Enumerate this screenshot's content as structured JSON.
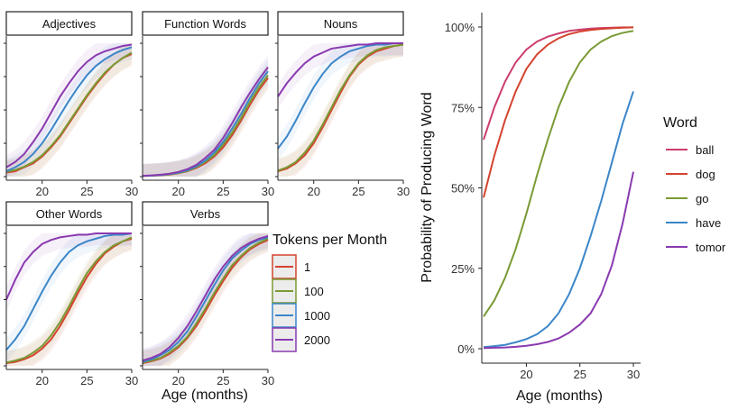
{
  "chart_data": [
    {
      "type": "line",
      "layout": "facets",
      "xlabel": "Age (months)",
      "ylabel": "",
      "xlim": [
        16,
        30
      ],
      "ylim": [
        0,
        1
      ],
      "xticks": [
        20,
        25,
        30
      ],
      "legend": {
        "title": "Tokens per Month",
        "placement": "right",
        "entries": [
          {
            "label": "1",
            "color": "#d4432f"
          },
          {
            "label": "100",
            "color": "#7a9a34"
          },
          {
            "label": "1000",
            "color": "#3b86c8"
          },
          {
            "label": "2000",
            "color": "#8a3ab0"
          }
        ]
      },
      "x": [
        16,
        17,
        18,
        19,
        20,
        21,
        22,
        23,
        24,
        25,
        26,
        27,
        28,
        29,
        30
      ],
      "facets": [
        {
          "title": "Adjectives",
          "show_xticks": true,
          "series": [
            {
              "name": "1",
              "values": [
                0.03,
                0.04,
                0.07,
                0.1,
                0.15,
                0.22,
                0.3,
                0.4,
                0.5,
                0.6,
                0.69,
                0.77,
                0.84,
                0.89,
                0.92
              ]
            },
            {
              "name": "100",
              "values": [
                0.035,
                0.05,
                0.075,
                0.11,
                0.16,
                0.23,
                0.31,
                0.41,
                0.51,
                0.61,
                0.7,
                0.78,
                0.84,
                0.89,
                0.93
              ]
            },
            {
              "name": "1000",
              "values": [
                0.04,
                0.07,
                0.11,
                0.17,
                0.25,
                0.35,
                0.46,
                0.57,
                0.67,
                0.76,
                0.83,
                0.88,
                0.92,
                0.95,
                0.97
              ]
            },
            {
              "name": "2000",
              "values": [
                0.07,
                0.11,
                0.17,
                0.26,
                0.36,
                0.48,
                0.6,
                0.7,
                0.79,
                0.86,
                0.91,
                0.94,
                0.96,
                0.98,
                0.99
              ]
            }
          ]
        },
        {
          "title": "Function Words",
          "show_xticks": true,
          "series": [
            {
              "name": "1",
              "values": [
                0.005,
                0.007,
                0.01,
                0.015,
                0.025,
                0.04,
                0.065,
                0.1,
                0.15,
                0.22,
                0.31,
                0.42,
                0.54,
                0.65,
                0.74
              ]
            },
            {
              "name": "100",
              "values": [
                0.005,
                0.007,
                0.011,
                0.017,
                0.027,
                0.043,
                0.07,
                0.11,
                0.16,
                0.24,
                0.33,
                0.44,
                0.56,
                0.67,
                0.76
              ]
            },
            {
              "name": "1000",
              "values": [
                0.005,
                0.008,
                0.012,
                0.019,
                0.03,
                0.048,
                0.077,
                0.12,
                0.18,
                0.26,
                0.36,
                0.47,
                0.59,
                0.7,
                0.79
              ]
            },
            {
              "name": "2000",
              "values": [
                0.006,
                0.009,
                0.014,
                0.022,
                0.035,
                0.056,
                0.088,
                0.14,
                0.2,
                0.29,
                0.4,
                0.52,
                0.63,
                0.73,
                0.82
              ]
            }
          ]
        },
        {
          "title": "Nouns",
          "show_xticks": true,
          "series": [
            {
              "name": "1",
              "values": [
                0.04,
                0.06,
                0.1,
                0.16,
                0.25,
                0.37,
                0.5,
                0.63,
                0.75,
                0.84,
                0.9,
                0.94,
                0.96,
                0.98,
                0.99
              ]
            },
            {
              "name": "100",
              "values": [
                0.045,
                0.07,
                0.11,
                0.18,
                0.27,
                0.39,
                0.52,
                0.65,
                0.76,
                0.85,
                0.91,
                0.95,
                0.97,
                0.98,
                0.99
              ]
            },
            {
              "name": "1000",
              "values": [
                0.21,
                0.3,
                0.42,
                0.55,
                0.67,
                0.77,
                0.85,
                0.9,
                0.94,
                0.96,
                0.98,
                0.99,
                0.99,
                1.0,
                1.0
              ]
            },
            {
              "name": "2000",
              "values": [
                0.6,
                0.7,
                0.78,
                0.85,
                0.9,
                0.93,
                0.96,
                0.97,
                0.98,
                0.99,
                0.99,
                1.0,
                1.0,
                1.0,
                1.0
              ]
            }
          ]
        },
        {
          "title": "Other Words",
          "show_xticks": true,
          "series": [
            {
              "name": "1",
              "values": [
                0.02,
                0.03,
                0.05,
                0.08,
                0.13,
                0.2,
                0.3,
                0.42,
                0.55,
                0.67,
                0.77,
                0.85,
                0.9,
                0.94,
                0.96
              ]
            },
            {
              "name": "100",
              "values": [
                0.025,
                0.04,
                0.06,
                0.1,
                0.15,
                0.23,
                0.33,
                0.45,
                0.58,
                0.7,
                0.79,
                0.86,
                0.91,
                0.94,
                0.97
              ]
            },
            {
              "name": "1000",
              "values": [
                0.12,
                0.2,
                0.3,
                0.43,
                0.56,
                0.68,
                0.78,
                0.86,
                0.91,
                0.94,
                0.96,
                0.98,
                0.99,
                0.99,
                1.0
              ]
            },
            {
              "name": "2000",
              "values": [
                0.5,
                0.65,
                0.78,
                0.86,
                0.92,
                0.95,
                0.97,
                0.98,
                0.99,
                0.99,
                1.0,
                1.0,
                1.0,
                1.0,
                1.0
              ]
            }
          ]
        },
        {
          "title": "Verbs",
          "show_xticks": true,
          "series": [
            {
              "name": "1",
              "values": [
                0.02,
                0.035,
                0.055,
                0.09,
                0.14,
                0.21,
                0.3,
                0.41,
                0.53,
                0.64,
                0.74,
                0.82,
                0.88,
                0.92,
                0.95
              ]
            },
            {
              "name": "100",
              "values": [
                0.025,
                0.04,
                0.06,
                0.1,
                0.15,
                0.22,
                0.32,
                0.43,
                0.55,
                0.66,
                0.76,
                0.83,
                0.89,
                0.93,
                0.96
              ]
            },
            {
              "name": "1000",
              "values": [
                0.03,
                0.05,
                0.08,
                0.12,
                0.18,
                0.26,
                0.37,
                0.49,
                0.61,
                0.72,
                0.81,
                0.87,
                0.92,
                0.95,
                0.97
              ]
            },
            {
              "name": "2000",
              "values": [
                0.04,
                0.06,
                0.09,
                0.14,
                0.21,
                0.3,
                0.41,
                0.53,
                0.65,
                0.75,
                0.83,
                0.89,
                0.93,
                0.96,
                0.98
              ]
            }
          ]
        }
      ]
    },
    {
      "type": "line",
      "title": "",
      "xlabel": "Age (months)",
      "ylabel": "Probability of Producing Word",
      "xlim": [
        16,
        30
      ],
      "ylim": [
        0,
        1
      ],
      "xticks": [
        20,
        25,
        30
      ],
      "yticks": [
        0,
        0.25,
        0.5,
        0.75,
        1
      ],
      "ytick_labels": [
        "0%",
        "25%",
        "50%",
        "75%",
        "100%"
      ],
      "legend": {
        "title": "Word",
        "placement": "right"
      },
      "x": [
        16,
        17,
        18,
        19,
        20,
        21,
        22,
        23,
        24,
        25,
        26,
        27,
        28,
        29,
        30
      ],
      "series": [
        {
          "name": "ball",
          "color": "#cc3d6b",
          "values": [
            0.65,
            0.75,
            0.83,
            0.89,
            0.93,
            0.955,
            0.97,
            0.98,
            0.988,
            0.992,
            0.995,
            0.997,
            0.998,
            0.999,
            0.999
          ]
        },
        {
          "name": "dog",
          "color": "#d4432f",
          "values": [
            0.47,
            0.6,
            0.71,
            0.8,
            0.87,
            0.915,
            0.945,
            0.965,
            0.978,
            0.986,
            0.991,
            0.994,
            0.996,
            0.998,
            0.999
          ]
        },
        {
          "name": "go",
          "color": "#7a9a34",
          "values": [
            0.1,
            0.15,
            0.22,
            0.31,
            0.42,
            0.54,
            0.65,
            0.75,
            0.83,
            0.89,
            0.93,
            0.955,
            0.972,
            0.982,
            0.988
          ]
        },
        {
          "name": "have",
          "color": "#3b86c8",
          "values": [
            0.005,
            0.008,
            0.012,
            0.02,
            0.03,
            0.045,
            0.07,
            0.11,
            0.17,
            0.25,
            0.35,
            0.46,
            0.58,
            0.7,
            0.8
          ]
        },
        {
          "name": "tomor",
          "color": "#8a3ab0",
          "values": [
            0.002,
            0.003,
            0.004,
            0.006,
            0.009,
            0.014,
            0.021,
            0.032,
            0.05,
            0.075,
            0.11,
            0.17,
            0.26,
            0.39,
            0.55
          ]
        }
      ]
    }
  ]
}
